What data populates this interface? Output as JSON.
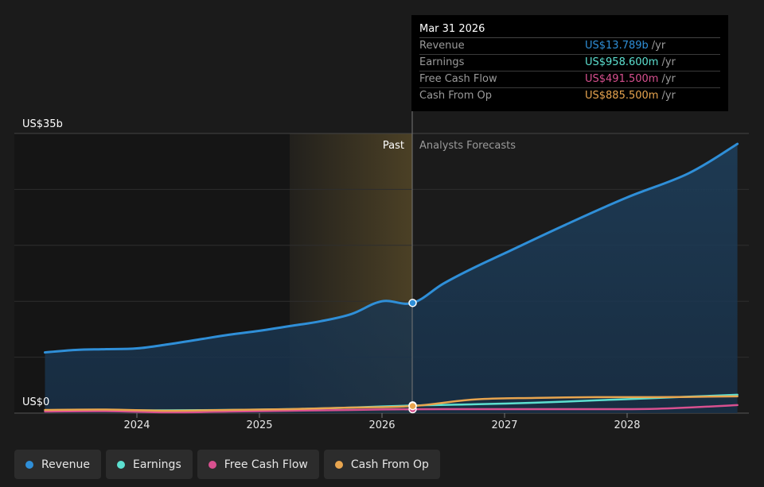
{
  "chart_data": {
    "type": "area",
    "y_axis": {
      "top_label": "US$35b",
      "bottom_label": "US$0",
      "ylim": [
        0,
        35
      ]
    },
    "x_axis": {
      "ticks": [
        "2024",
        "2025",
        "2026",
        "2027",
        "2028"
      ],
      "xlim": [
        2023.25,
        2028.9
      ]
    },
    "divider": {
      "x": 2026.25,
      "past_label": "Past",
      "forecast_label": "Analysts Forecasts"
    },
    "series": [
      {
        "name": "Revenue",
        "color": "#2f8fd8",
        "fill": true,
        "points": [
          [
            2023.25,
            7.6
          ],
          [
            2023.5,
            7.9
          ],
          [
            2023.75,
            8.0
          ],
          [
            2024.0,
            8.1
          ],
          [
            2024.25,
            8.6
          ],
          [
            2024.5,
            9.2
          ],
          [
            2024.75,
            9.8
          ],
          [
            2025.0,
            10.3
          ],
          [
            2025.25,
            10.9
          ],
          [
            2025.5,
            11.5
          ],
          [
            2025.75,
            12.4
          ],
          [
            2026.0,
            14.0
          ],
          [
            2026.25,
            13.789
          ],
          [
            2026.5,
            16.2
          ],
          [
            2026.75,
            18.2
          ],
          [
            2027.0,
            20.0
          ],
          [
            2027.5,
            23.6
          ],
          [
            2028.0,
            27.0
          ],
          [
            2028.5,
            30.0
          ],
          [
            2028.9,
            33.7
          ]
        ]
      },
      {
        "name": "Earnings",
        "color": "#5ce0d0",
        "fill": false,
        "points": [
          [
            2023.25,
            0.3
          ],
          [
            2023.75,
            0.35
          ],
          [
            2024.25,
            0.35
          ],
          [
            2024.75,
            0.4
          ],
          [
            2025.25,
            0.5
          ],
          [
            2025.75,
            0.7
          ],
          [
            2026.25,
            0.9586
          ],
          [
            2026.75,
            1.1
          ],
          [
            2027.25,
            1.3
          ],
          [
            2027.75,
            1.6
          ],
          [
            2028.25,
            1.9
          ],
          [
            2028.9,
            2.3
          ]
        ]
      },
      {
        "name": "Free Cash Flow",
        "color": "#d8508f",
        "fill": false,
        "points": [
          [
            2023.25,
            0.2
          ],
          [
            2023.75,
            0.25
          ],
          [
            2024.25,
            0.1
          ],
          [
            2024.75,
            0.2
          ],
          [
            2025.25,
            0.3
          ],
          [
            2025.75,
            0.4
          ],
          [
            2026.25,
            0.4915
          ],
          [
            2026.75,
            0.5
          ],
          [
            2027.25,
            0.5
          ],
          [
            2027.75,
            0.5
          ],
          [
            2028.25,
            0.55
          ],
          [
            2028.9,
            1.0
          ]
        ]
      },
      {
        "name": "Cash From Op",
        "color": "#e8a54f",
        "fill": false,
        "points": [
          [
            2023.25,
            0.4
          ],
          [
            2023.75,
            0.45
          ],
          [
            2024.25,
            0.3
          ],
          [
            2024.75,
            0.4
          ],
          [
            2025.25,
            0.5
          ],
          [
            2025.75,
            0.7
          ],
          [
            2026.25,
            0.8855
          ],
          [
            2026.75,
            1.7
          ],
          [
            2027.25,
            1.9
          ],
          [
            2027.75,
            2.0
          ],
          [
            2028.25,
            2.0
          ],
          [
            2028.9,
            2.1
          ]
        ]
      }
    ]
  },
  "tooltip": {
    "date": "Mar 31 2026",
    "rows": [
      {
        "label": "Revenue",
        "value": "US$13.789b",
        "unit": "/yr",
        "color": "#2f8fd8"
      },
      {
        "label": "Earnings",
        "value": "US$958.600m",
        "unit": "/yr",
        "color": "#5ce0d0"
      },
      {
        "label": "Free Cash Flow",
        "value": "US$491.500m",
        "unit": "/yr",
        "color": "#d8508f"
      },
      {
        "label": "Cash From Op",
        "value": "US$885.500m",
        "unit": "/yr",
        "color": "#e8a54f"
      }
    ]
  },
  "legend": [
    {
      "label": "Revenue",
      "color": "#2f8fd8"
    },
    {
      "label": "Earnings",
      "color": "#5ce0d0"
    },
    {
      "label": "Free Cash Flow",
      "color": "#d8508f"
    },
    {
      "label": "Cash From Op",
      "color": "#e8a54f"
    }
  ]
}
